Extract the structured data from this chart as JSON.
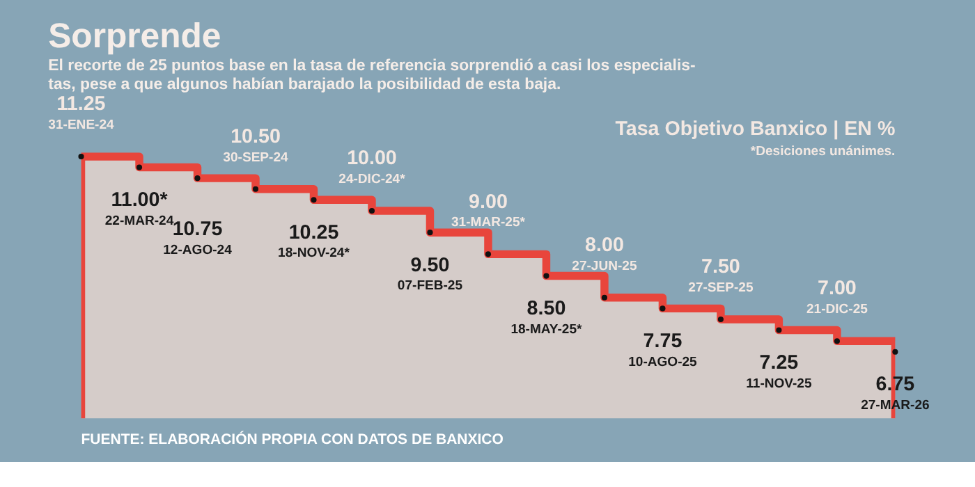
{
  "chart_data": {
    "type": "area",
    "title": "Sorprende",
    "subtitle": "El recorte de 25 puntos base en la tasa de referencia sorprendió a casi  los especialis-\ntas, pese a que algunos habían barajado la posibilidad de esta baja.",
    "categories": [
      "31-ENE-24",
      "22-MAR-24",
      "12-AGO-24",
      "30-SEP-24",
      "18-NOV-24*",
      "24-DIC-24*",
      "07-FEB-25",
      "31-MAR-25*",
      "18-MAY-25*",
      "27-JUN-25",
      "10-AGO-25",
      "27-SEP-25",
      "11-NOV-25",
      "21-DIC-25",
      "27-MAR-26"
    ],
    "series": [
      {
        "color": "#e8453c",
        "values": [
          11.25,
          11.0,
          10.75,
          10.5,
          10.25,
          10.0,
          9.5,
          9.0,
          8.5,
          8.0,
          7.75,
          7.5,
          7.25,
          7.0,
          6.75
        ],
        "value_labels": [
          "11.25",
          "11.00*",
          "10.75",
          "10.50",
          "10.25",
          "10.00",
          "9.50",
          "9.00",
          "8.50",
          "8.00",
          "7.75",
          "7.50",
          "7.25",
          "7.00",
          "6.75"
        ]
      }
    ],
    "annotations": [
      "Tasa Objetivo Banxico | EN %",
      "*Desiciones unánimes.",
      "FUENTE: ELABORACIÓN PROPIA CON DATOS DE BANXICO"
    ],
    "marker": "circle"
  }
}
